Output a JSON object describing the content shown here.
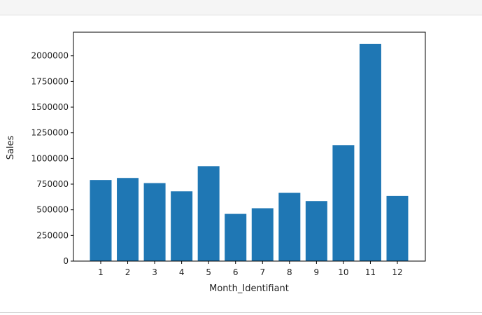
{
  "chart_data": {
    "type": "bar",
    "categories": [
      "1",
      "2",
      "3",
      "4",
      "5",
      "6",
      "7",
      "8",
      "9",
      "10",
      "11",
      "12"
    ],
    "values": [
      790000,
      810000,
      760000,
      680000,
      925000,
      460000,
      515000,
      665000,
      585000,
      1130000,
      2115000,
      635000
    ],
    "xlabel": "Month_Identifiant",
    "ylabel": "Sales",
    "ylim": [
      0,
      2230000
    ],
    "yticks": [
      0,
      250000,
      500000,
      750000,
      1000000,
      1250000,
      1500000,
      1750000,
      2000000
    ],
    "ytick_labels": [
      "0",
      "250000",
      "500000",
      "750000",
      "1000000",
      "1250000",
      "1500000",
      "1750000",
      "2000000"
    ],
    "bar_color": "#1f77b4",
    "grid": false,
    "legend": "none"
  }
}
